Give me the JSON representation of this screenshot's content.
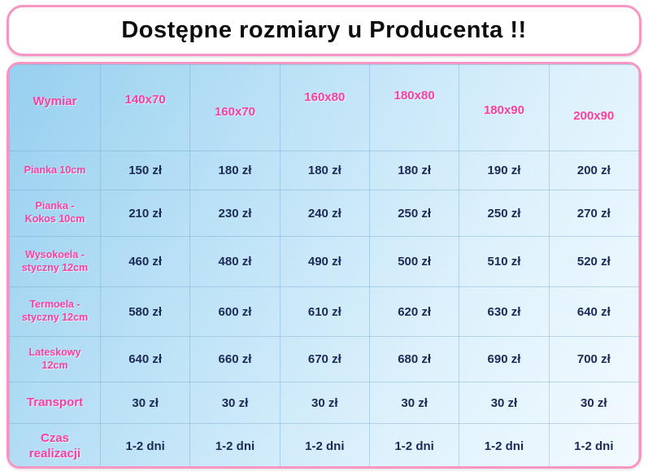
{
  "colors": {
    "accent_pink": "#fd3ea1",
    "border_pink": "#f795c3",
    "value_navy": "#1c2a56",
    "table_blue": "#97d0ef"
  },
  "chart_data": {
    "type": "table",
    "title": "Dostępne rozmiary u Producenta !!",
    "columns": [
      "Wymiar",
      "140x70",
      "160x70",
      "160x80",
      "180x80",
      "180x90",
      "200x90"
    ],
    "rows": [
      {
        "label": "Pianka 10cm",
        "values": [
          "150 zł",
          "180 zł",
          "180 zł",
          "180 zł",
          "190 zł",
          "200 zł"
        ]
      },
      {
        "label": "Pianka - Kokos 10cm",
        "values": [
          "210 zł",
          "230 zł",
          "240 zł",
          "250 zł",
          "250 zł",
          "270 zł"
        ]
      },
      {
        "label": "Wysokoela - styczny 12cm",
        "values": [
          "460 zł",
          "480 zł",
          "490 zł",
          "500 zł",
          "510 zł",
          "520 zł"
        ]
      },
      {
        "label": "Termoela - styczny 12cm",
        "values": [
          "580 zł",
          "600 zł",
          "610 zł",
          "620 zł",
          "630 zł",
          "640 zł"
        ]
      },
      {
        "label": "Lateskowy 12cm",
        "values": [
          "640 zł",
          "660 zł",
          "670 zł",
          "680 zł",
          "690 zł",
          "700 zł"
        ]
      },
      {
        "label": "Transport",
        "values": [
          "30 zł",
          "30 zł",
          "30 zł",
          "30 zł",
          "30 zł",
          "30 zł"
        ]
      },
      {
        "label": "Czas realizacji",
        "values": [
          "1-2 dni",
          "1-2 dni",
          "1-2 dni",
          "1-2 dni",
          "1-2 dni",
          "1-2 dni"
        ]
      }
    ]
  }
}
